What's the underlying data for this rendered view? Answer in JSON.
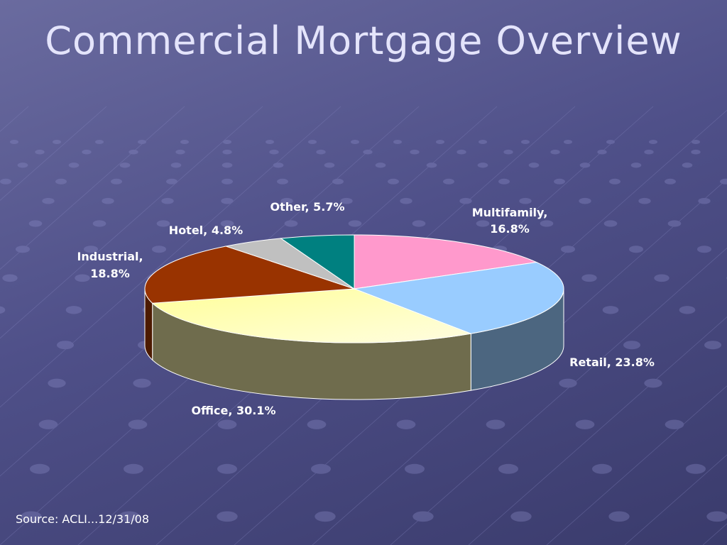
{
  "slide": {
    "title": "Commercial Mortgage Overview",
    "source": "Source: ACLI...12/31/08"
  },
  "chart_data": {
    "type": "pie",
    "title": "",
    "slices": [
      {
        "label": "Multifamily,",
        "label_line2": "16.8%",
        "category": "Multifamily",
        "value": 16.8,
        "color": "#ff99cc",
        "side_color": "#b8668f"
      },
      {
        "label": "Retail, 23.8%",
        "label_line2": "",
        "category": "Retail",
        "value": 23.8,
        "color": "#99ccff",
        "side_color": "#4c6680"
      },
      {
        "label": "Office, 30.1%",
        "label_line2": "",
        "category": "Office",
        "value": 30.1,
        "color": "#ffff99",
        "side_color": "#6f6c4d"
      },
      {
        "label": "Industrial,",
        "label_line2": "18.8%",
        "category": "Industrial",
        "value": 18.8,
        "color": "#993300",
        "side_color": "#4c1a00"
      },
      {
        "label": "Hotel, 4.8%",
        "label_line2": "",
        "category": "Hotel",
        "value": 4.8,
        "color": "#c0c0c0",
        "side_color": "#7a7a7a"
      },
      {
        "label": "Other, 5.7%",
        "label_line2": "",
        "category": "Other",
        "value": 5.7,
        "color": "#008080",
        "side_color": "#004c4c"
      }
    ]
  }
}
